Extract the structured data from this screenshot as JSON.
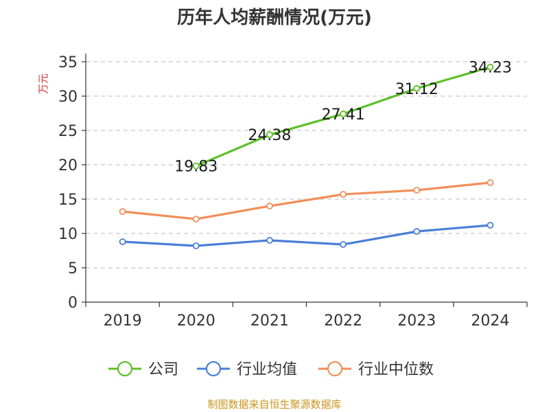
{
  "chart_data": {
    "type": "line",
    "title": "历年人均薪酬情况(万元)",
    "ylabel": "万元",
    "xlabel": "",
    "categories": [
      "2019",
      "2020",
      "2021",
      "2022",
      "2023",
      "2024"
    ],
    "ylim": [
      0,
      35
    ],
    "yticks": [
      0,
      5,
      10,
      15,
      20,
      25,
      30,
      35
    ],
    "grid": true,
    "legend_position": "bottom",
    "series": [
      {
        "name": "公司",
        "color": "#5cbf27",
        "values": [
          null,
          19.83,
          24.38,
          27.41,
          31.12,
          34.23
        ],
        "labels": [
          "",
          "19.83",
          "24.38",
          "27.41",
          "31.12",
          "34.23"
        ]
      },
      {
        "name": "行业均值",
        "color": "#4a7fd6",
        "values": [
          8.8,
          8.2,
          9.0,
          8.4,
          10.3,
          11.2
        ],
        "labels": []
      },
      {
        "name": "行业中位数",
        "color": "#f28e5a",
        "values": [
          13.2,
          12.1,
          14.0,
          15.7,
          16.3,
          17.4
        ],
        "labels": []
      }
    ]
  },
  "source": "制图数据来自恒生聚源数据库"
}
